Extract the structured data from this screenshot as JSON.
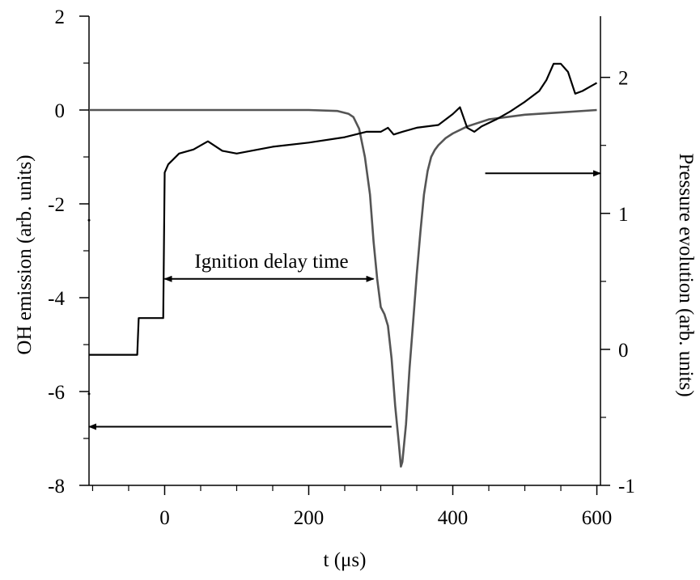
{
  "chart_data": {
    "type": "line",
    "xlabel": "t (μs)",
    "ylabel_left": "OH emission (arb. units)",
    "ylabel_right": "Pressure evolution (arb. units)",
    "xlim": [
      -105,
      605
    ],
    "ylim_left": [
      -8,
      2
    ],
    "ylim_right": [
      -1,
      2.45
    ],
    "x_ticks": [
      0,
      200,
      400,
      600
    ],
    "x_tick_labels": [
      "0",
      "200",
      "400",
      "600"
    ],
    "y_ticks_left": [
      -8,
      -6,
      -4,
      -2,
      0,
      2
    ],
    "y_tick_labels_left": [
      "-8",
      "-6",
      "-4",
      "-2",
      "0",
      "2"
    ],
    "y_ticks_right": [
      -1,
      0,
      1,
      2
    ],
    "y_tick_labels_right": [
      "-1",
      "0",
      "1",
      "2"
    ],
    "grid": false,
    "series": [
      {
        "axis": "left",
        "color": "#555555",
        "x": [
          -105,
          0,
          100,
          200,
          240,
          255,
          262,
          270,
          278,
          285,
          290,
          295,
          300,
          305,
          310,
          315,
          320,
          325,
          328,
          330,
          335,
          340,
          345,
          350,
          355,
          360,
          365,
          370,
          375,
          380,
          390,
          400,
          420,
          450,
          500,
          550,
          600
        ],
        "y": [
          0,
          0,
          0,
          0,
          -0.02,
          -0.08,
          -0.15,
          -0.4,
          -1.0,
          -1.8,
          -2.8,
          -3.6,
          -4.2,
          -4.35,
          -4.6,
          -5.3,
          -6.3,
          -7.1,
          -7.6,
          -7.5,
          -6.7,
          -5.5,
          -4.5,
          -3.5,
          -2.6,
          -1.8,
          -1.3,
          -1.0,
          -0.85,
          -0.75,
          -0.6,
          -0.5,
          -0.35,
          -0.2,
          -0.1,
          -0.05,
          0
        ]
      },
      {
        "axis": "right",
        "color": "#000000",
        "x": [
          -105,
          -38,
          -36,
          -10,
          -2,
          0,
          5,
          20,
          40,
          60,
          80,
          100,
          150,
          200,
          250,
          280,
          300,
          310,
          318,
          330,
          350,
          380,
          400,
          410,
          420,
          430,
          440,
          460,
          480,
          500,
          520,
          530,
          540,
          550,
          560,
          570,
          580,
          590,
          600
        ],
        "y": [
          -0.04,
          -0.04,
          0.23,
          0.23,
          0.23,
          1.3,
          1.36,
          1.44,
          1.47,
          1.53,
          1.46,
          1.44,
          1.49,
          1.52,
          1.56,
          1.6,
          1.6,
          1.63,
          1.58,
          1.6,
          1.63,
          1.65,
          1.73,
          1.78,
          1.63,
          1.6,
          1.64,
          1.69,
          1.75,
          1.82,
          1.9,
          1.98,
          2.1,
          2.1,
          2.04,
          1.88,
          1.9,
          1.93,
          1.96
        ]
      }
    ],
    "annotations": [
      {
        "text": "Ignition delay time",
        "x_start": 0,
        "x_end": 290,
        "y_left": -3.6,
        "type": "double-arrow"
      },
      {
        "text": "",
        "x_from": 315,
        "x_to": -105,
        "y_left": -6.75,
        "type": "arrow-left"
      },
      {
        "text": "",
        "x_from": 445,
        "x_to": 605,
        "y_left": -1.35,
        "type": "arrow-right"
      }
    ],
    "marks": [
      {
        "x": -105,
        "y_left": -2.35
      },
      {
        "x": -105,
        "y_left": -6.05
      }
    ]
  }
}
